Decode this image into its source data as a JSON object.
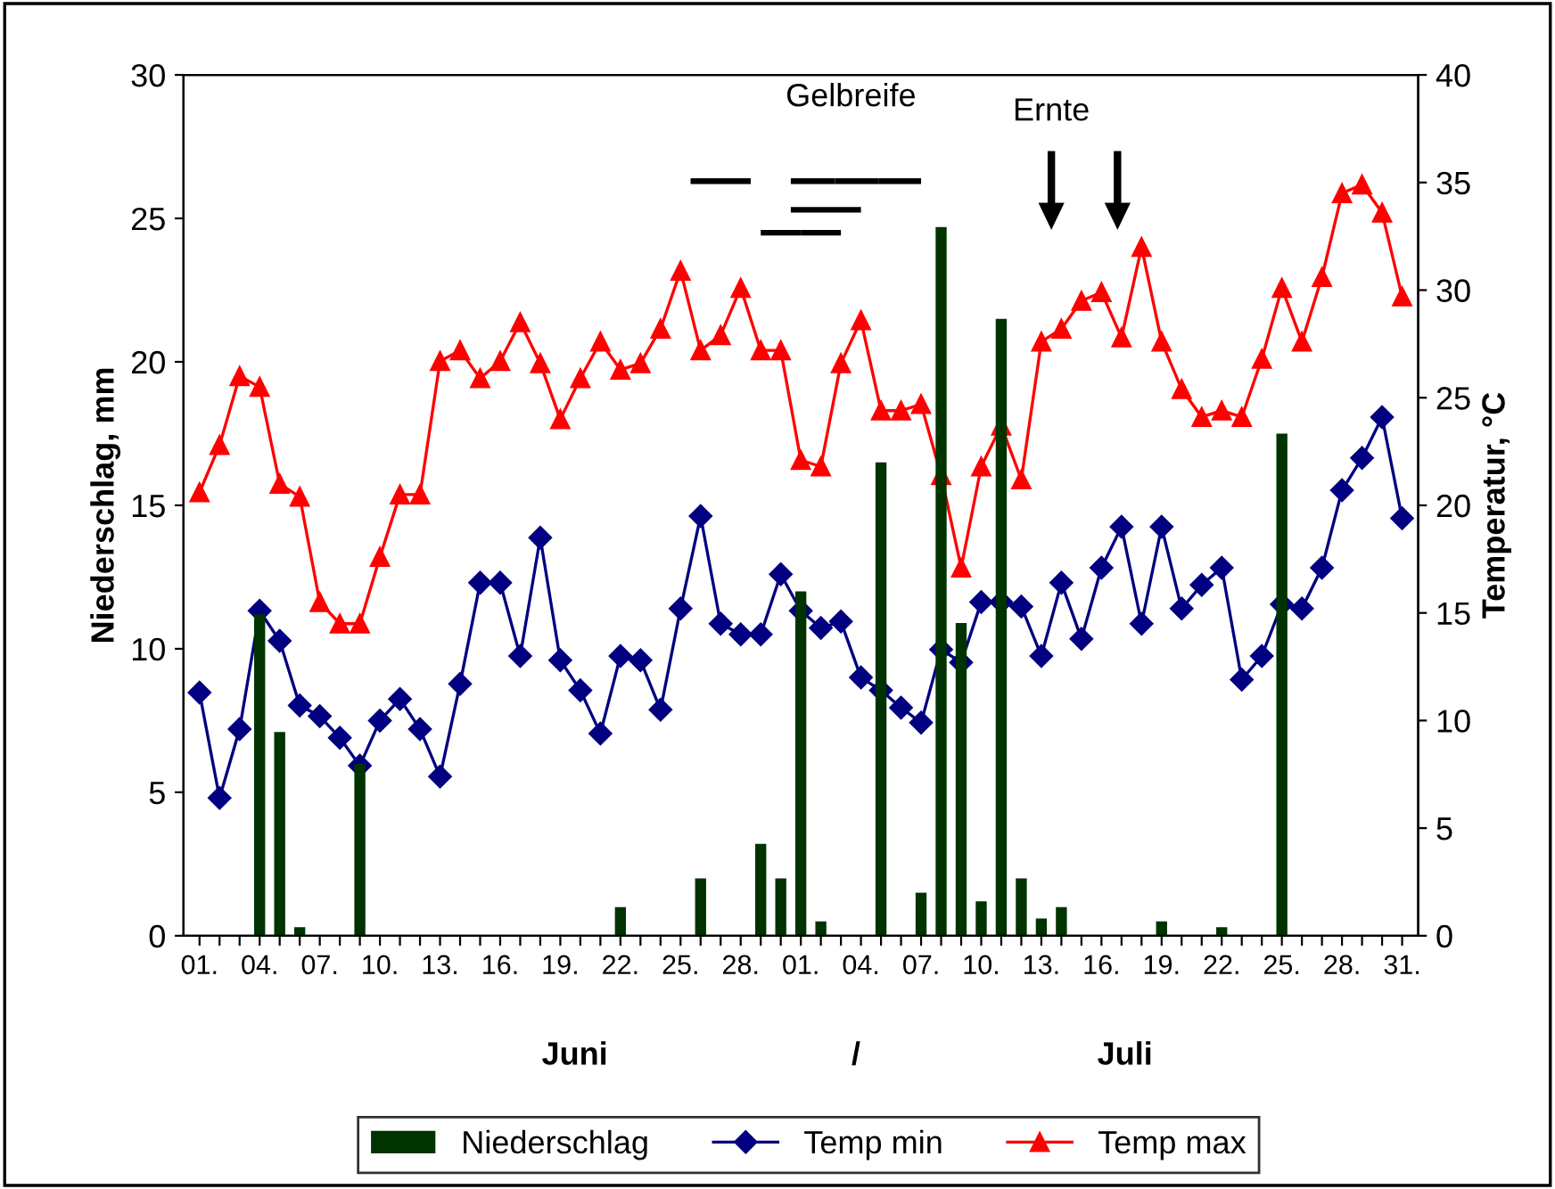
{
  "chart_data": {
    "type": "bar",
    "categories": [
      "01.",
      null,
      null,
      "04.",
      null,
      null,
      "07.",
      null,
      null,
      "10.",
      null,
      null,
      "13.",
      null,
      null,
      "16.",
      null,
      null,
      "19.",
      null,
      null,
      "22.",
      null,
      null,
      "25.",
      null,
      null,
      "28.",
      null,
      null,
      "01.",
      null,
      null,
      "04.",
      null,
      null,
      "07.",
      null,
      null,
      "10.",
      null,
      null,
      "13.",
      null,
      null,
      "16.",
      null,
      null,
      "19.",
      null,
      null,
      "22.",
      null,
      null,
      "25.",
      null,
      null,
      "28.",
      null,
      null,
      "31."
    ],
    "ylabel": "Niederschlag, mm",
    "y2label": "Temperatur, °C",
    "ylim": [
      0,
      30
    ],
    "yticks": [
      0,
      5,
      10,
      15,
      20,
      25,
      30
    ],
    "y2lim": [
      0,
      40
    ],
    "y2ticks": [
      0,
      5,
      10,
      15,
      20,
      25,
      30,
      35,
      40
    ],
    "grid": false,
    "legend": "bottom",
    "annotations": [
      "Juni",
      "/",
      "Juli",
      "Gelbreife",
      "Ernte"
    ],
    "series": [
      {
        "name": "Niederschlag",
        "color": "#003300",
        "values": [
          0,
          0,
          0,
          11.2,
          7.1,
          0.3,
          0,
          0,
          6.0,
          0,
          0,
          0,
          0,
          0,
          0,
          0,
          0,
          0,
          0,
          0,
          0,
          1.0,
          0,
          0,
          0,
          2.0,
          0,
          0,
          3.2,
          2.0,
          12.0,
          0.5,
          0,
          0,
          16.5,
          0,
          1.5,
          24.7,
          10.9,
          1.2,
          21.5,
          2.0,
          0.6,
          1.0,
          0,
          0,
          0,
          0,
          0.5,
          0,
          0,
          0.3,
          0,
          0,
          17.5,
          0,
          0,
          0,
          0,
          0,
          0
        ]
      },
      {
        "name": "Temp min",
        "type": "line",
        "axis": "y2",
        "color": "#000080",
        "marker": "diamond",
        "values": [
          11.3,
          6.4,
          9.6,
          15.1,
          13.7,
          10.7,
          10.2,
          9.2,
          7.9,
          10.0,
          11.0,
          9.6,
          7.4,
          11.7,
          16.4,
          16.4,
          13.0,
          18.5,
          12.8,
          11.4,
          9.4,
          13.0,
          12.8,
          10.5,
          15.2,
          19.5,
          14.5,
          14.0,
          14.0,
          16.8,
          15.1,
          14.3,
          14.6,
          12.0,
          11.4,
          10.6,
          9.9,
          13.3,
          12.7,
          15.5,
          15.5,
          15.3,
          13.0,
          16.4,
          13.8,
          17.1,
          19.0,
          14.5,
          19.0,
          15.2,
          16.3,
          17.1,
          11.9,
          13.0,
          15.4,
          15.2,
          17.1,
          20.7,
          22.2,
          24.1,
          19.4
        ]
      },
      {
        "name": "Temp max",
        "type": "line",
        "axis": "y2",
        "color": "#ff0000",
        "marker": "triangle",
        "values": [
          20.6,
          22.8,
          26.0,
          25.5,
          21.0,
          20.4,
          15.5,
          14.5,
          14.5,
          17.6,
          20.5,
          20.5,
          26.7,
          27.2,
          25.9,
          26.7,
          28.5,
          26.6,
          24.0,
          25.9,
          27.6,
          26.3,
          26.6,
          28.2,
          30.9,
          27.2,
          27.9,
          30.1,
          27.2,
          27.2,
          22.1,
          21.8,
          26.6,
          28.6,
          24.4,
          24.4,
          24.7,
          21.4,
          17.1,
          21.8,
          23.7,
          21.2,
          27.6,
          28.2,
          29.5,
          29.9,
          27.8,
          32.0,
          27.6,
          25.4,
          24.1,
          24.4,
          24.1,
          26.8,
          30.1,
          27.6,
          30.6,
          34.5,
          34.9,
          33.6,
          29.7
        ]
      }
    ]
  }
}
